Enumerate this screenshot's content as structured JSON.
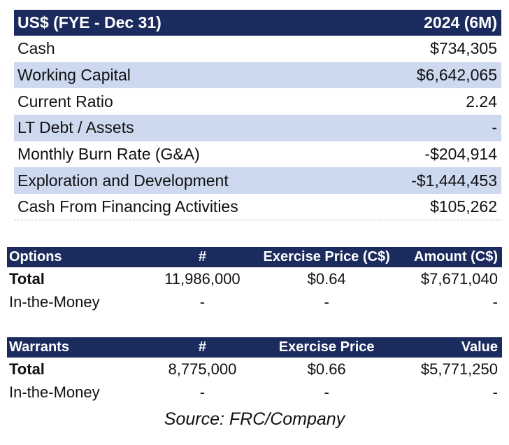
{
  "financials": {
    "header": {
      "label": "US$ (FYE - Dec 31)",
      "period": "2024 (6M)"
    },
    "rows": [
      {
        "label": "Cash",
        "value": "$734,305"
      },
      {
        "label": "Working Capital",
        "value": "$6,642,065"
      },
      {
        "label": "Current Ratio",
        "value": "2.24"
      },
      {
        "label": "LT Debt / Assets",
        "value": "-"
      },
      {
        "label": "Monthly Burn Rate (G&A)",
        "value": "-$204,914"
      },
      {
        "label": "Exploration and Development",
        "value": "-$1,444,453"
      },
      {
        "label": "Cash From Financing Activities",
        "value": "$105,262"
      }
    ]
  },
  "options": {
    "headers": [
      "Options",
      "#",
      "Exercise Price (C$)",
      "Amount (C$)"
    ],
    "rows": [
      [
        "Total",
        "11,986,000",
        "$0.64",
        "$7,671,040"
      ],
      [
        "In-the-Money",
        "-",
        "-",
        "-"
      ]
    ]
  },
  "warrants": {
    "headers": [
      "Warrants",
      "#",
      "Exercise Price",
      "Value"
    ],
    "rows": [
      [
        "Total",
        "8,775,000",
        "$0.66",
        "$5,771,250"
      ],
      [
        "In-the-Money",
        "-",
        "-",
        "-"
      ]
    ]
  },
  "source": "Source: FRC/Company"
}
